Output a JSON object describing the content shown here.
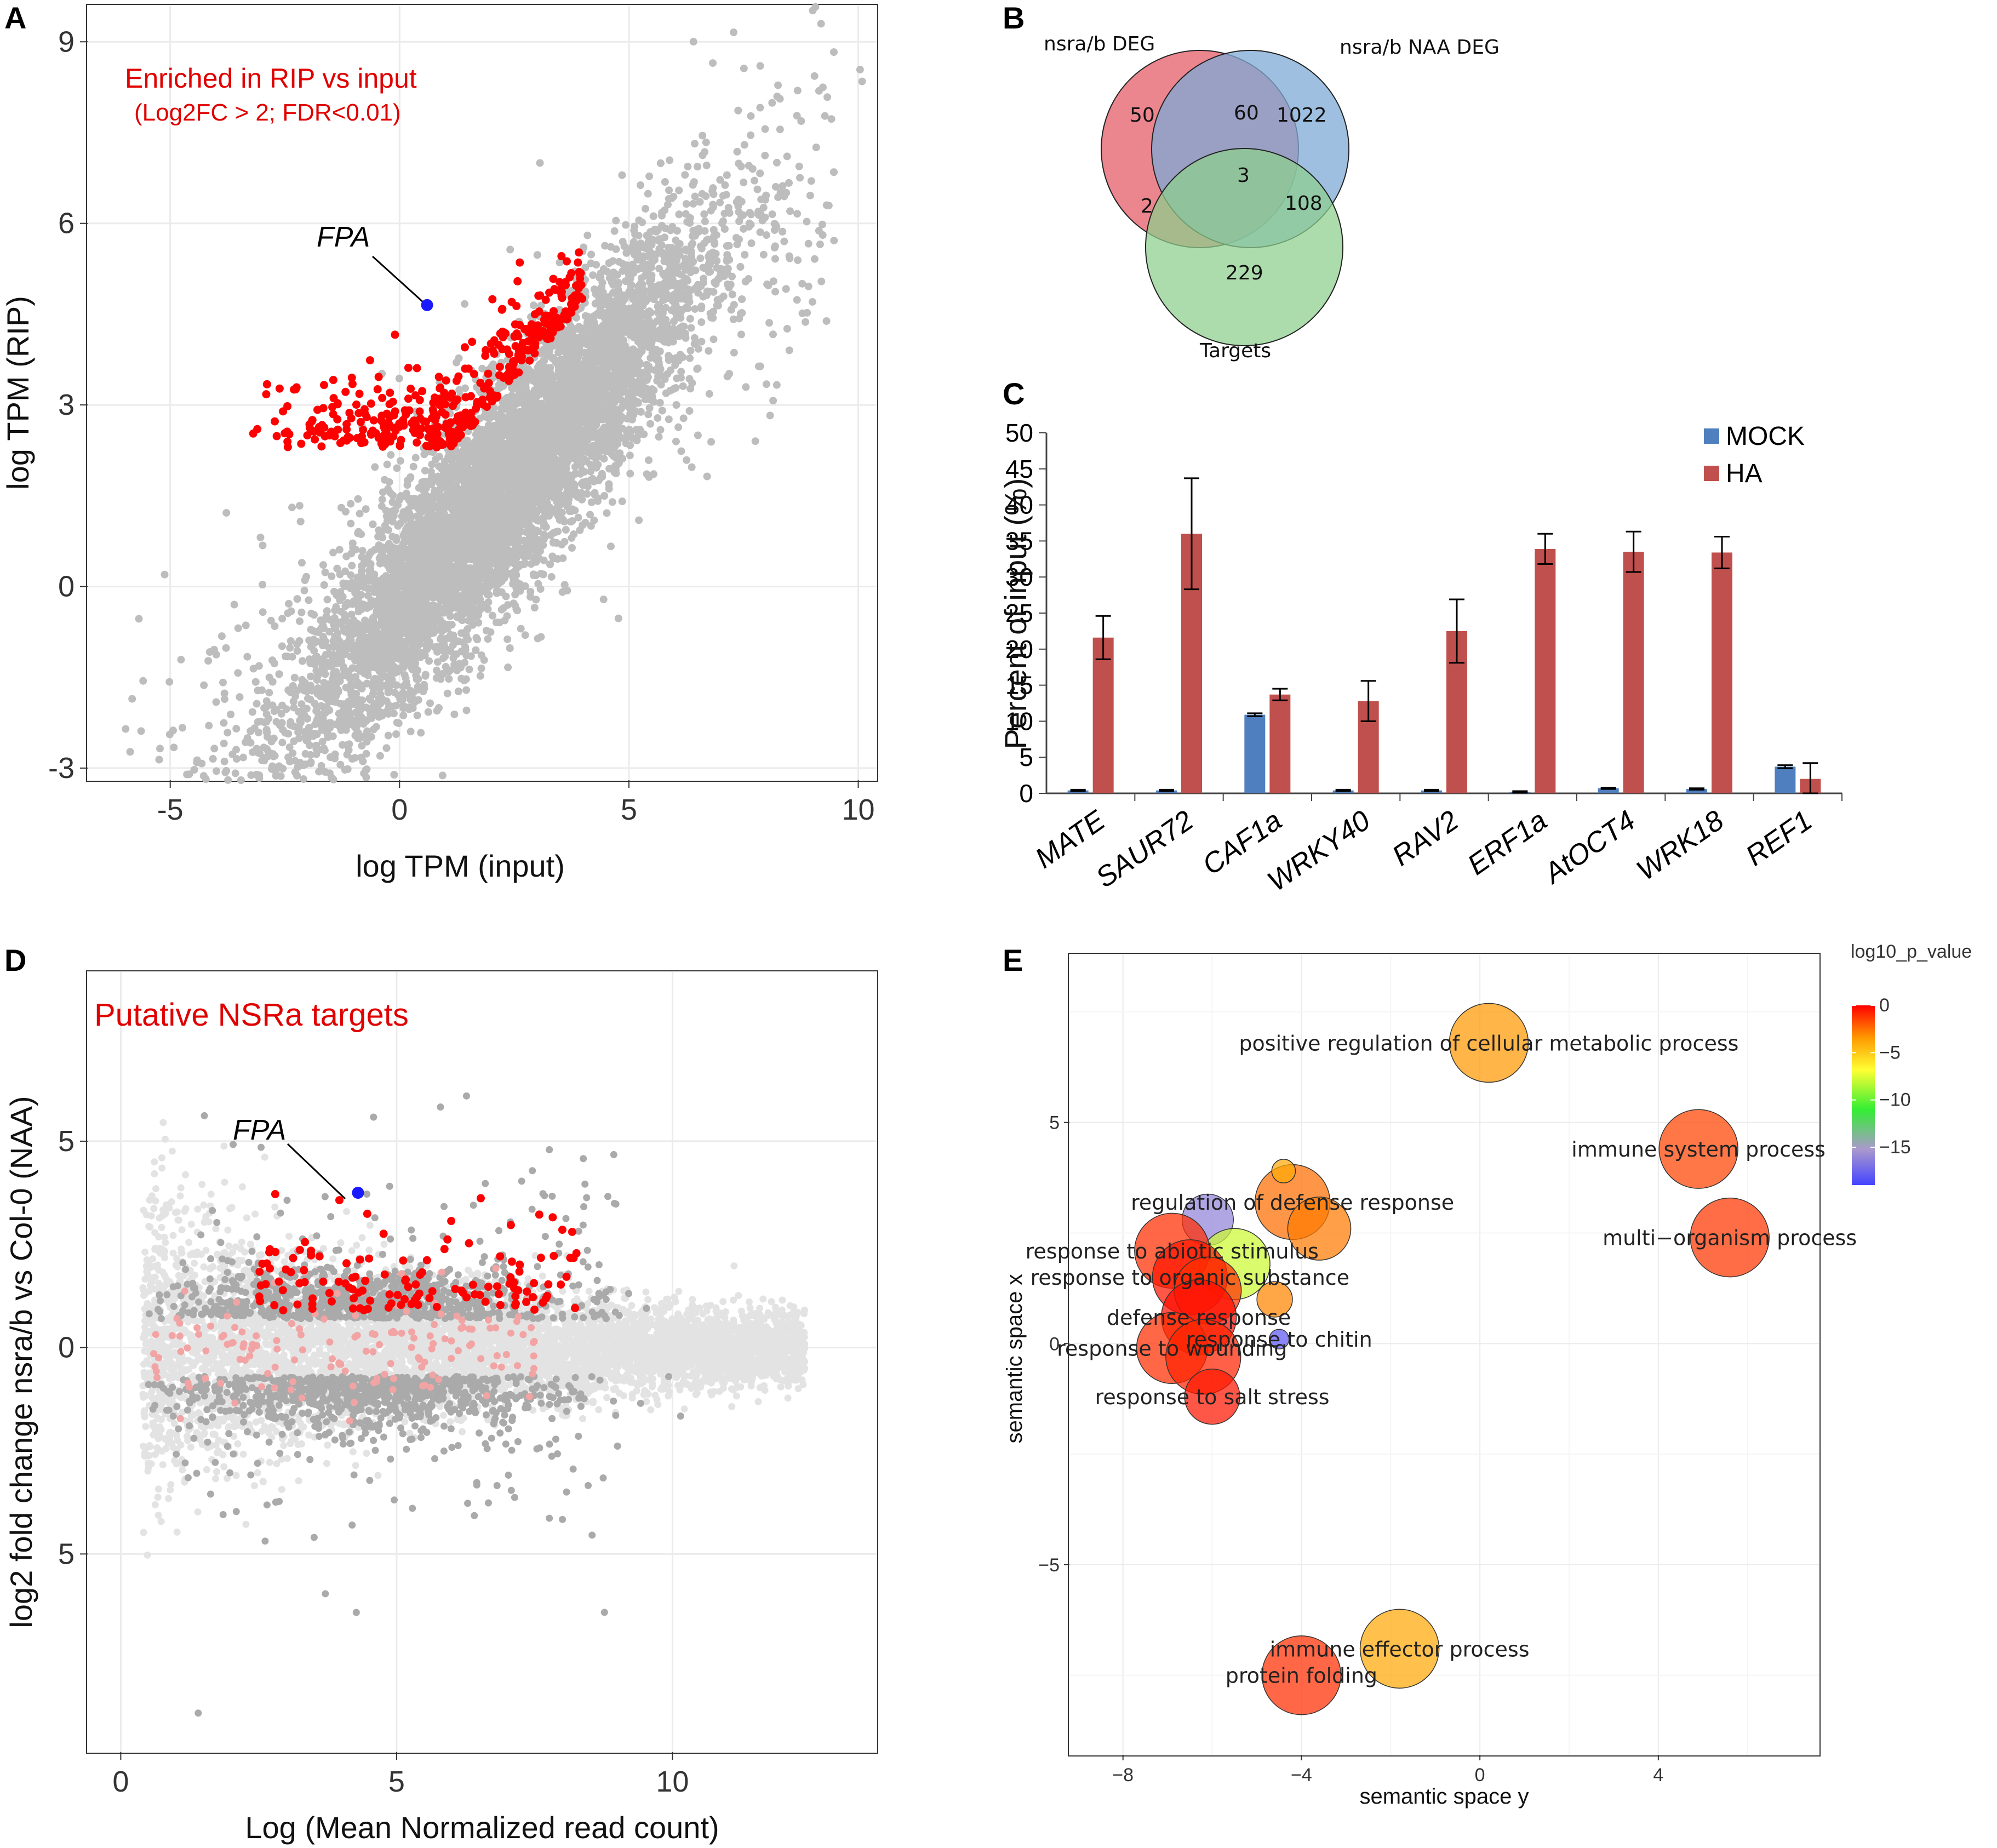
{
  "panels": {
    "A": {
      "letter": "A",
      "title": "Enriched in RIP vs input",
      "subtitle": "(Log2FC > 2; FDR<0.01)",
      "highlight_label": "FPA",
      "xlabel": "log TPM (input)",
      "ylabel": "log TPM (RIP)"
    },
    "B": {
      "letter": "B",
      "sets": [
        "nsra/b DEG",
        "nsra/b NAA DEG",
        "Targets"
      ],
      "colors": [
        "#e8707a",
        "#7faad6",
        "#8ccf8c"
      ]
    },
    "C": {
      "letter": "C"
    },
    "D": {
      "letter": "D",
      "title": "Putative NSRa targets",
      "highlight_label": "FPA",
      "xlabel": "Log (Mean Normalized read count)",
      "ylabel": "log2 fold change nsra/b vs Col-0 (NAA)"
    },
    "E": {
      "letter": "E",
      "xlabel": "semantic space y",
      "ylabel": "semantic space x",
      "legend_title": "log10_p_value"
    }
  },
  "chart_data": [
    {
      "id": "A",
      "type": "scatter",
      "title": "Enriched in RIP vs input",
      "subtitle": "(Log2FC > 2; FDR<0.01)",
      "xlabel": "log TPM (input)",
      "ylabel": "log TPM (RIP)",
      "xlim": [
        -6.8,
        10.4
      ],
      "ylim": [
        -3.2,
        9.6
      ],
      "xticks": [
        "-5",
        "0",
        "5",
        "10"
      ],
      "xtick_values": [
        -5,
        0,
        5,
        10
      ],
      "yticks": [
        "-3",
        "0",
        "3",
        "6",
        "9"
      ],
      "ytick_values": [
        -3,
        0,
        3,
        6,
        9
      ],
      "grid": true,
      "series": [
        {
          "name": "all genes",
          "color": "#bdbdbd",
          "description": "dense cloud along diagonal, roughly y ≈ x - 0.5"
        },
        {
          "name": "enriched",
          "color": "#ff0000",
          "description": "points with RIP > input, x between -4 and 4, y between 2.2 and 5.5"
        }
      ],
      "highlight": {
        "label": "FPA",
        "x": 0.6,
        "y": 4.65,
        "color": "#1a1aff"
      }
    },
    {
      "id": "B",
      "type": "venn",
      "sets": [
        "nsra/b DEG",
        "nsra/b NAA DEG",
        "Targets"
      ],
      "regions": {
        "only_DEG": "50",
        "DEG_NAA": "60",
        "only_NAA": "1022",
        "all_three": "3",
        "DEG_Targets": "2",
        "NAA_Targets": "108",
        "only_Targets": "229"
      }
    },
    {
      "id": "C",
      "type": "bar",
      "ylabel": "Percent of input (%)",
      "ylim": [
        0,
        50
      ],
      "yticks": [
        "0",
        "5",
        "10",
        "15",
        "20",
        "25",
        "30",
        "35",
        "40",
        "45",
        "50"
      ],
      "ytick_values": [
        0,
        5,
        10,
        15,
        20,
        25,
        30,
        35,
        40,
        45,
        50
      ],
      "categories": [
        "MATE",
        "SAUR72",
        "CAF1a",
        "WRKY40",
        "RAV2",
        "ERF1a",
        "AtOCT4",
        "WRK18",
        "REF1"
      ],
      "series": [
        {
          "name": "MOCK",
          "color": "#4f7fbf",
          "values": [
            0.4,
            0.4,
            10.9,
            0.4,
            0.4,
            0.2,
            0.7,
            0.6,
            3.7
          ],
          "errors": [
            0.1,
            0.1,
            0.2,
            0.1,
            0.1,
            0.1,
            0.1,
            0.1,
            0.2
          ]
        },
        {
          "name": "HA",
          "color": "#c0504d",
          "values": [
            21.6,
            36.0,
            13.7,
            12.8,
            22.5,
            33.9,
            33.5,
            33.4,
            2.0
          ],
          "errors": [
            3.0,
            7.7,
            0.8,
            2.8,
            4.4,
            2.1,
            2.8,
            2.2,
            2.2
          ]
        }
      ]
    },
    {
      "id": "D",
      "type": "scatter",
      "title": "Putative NSRa targets",
      "xlabel": "Log (Mean Normalized read count)",
      "ylabel": "log2 fold change nsra/b vs Col-0 (NAA)",
      "xlim": [
        -0.6,
        13.7
      ],
      "ylim": [
        -9.8,
        9.1
      ],
      "xticks": [
        "0",
        "5",
        "10"
      ],
      "xtick_values": [
        0,
        5,
        10
      ],
      "yticks": [
        "5",
        "0",
        "5"
      ],
      "ytick_values": [
        5,
        0,
        -5
      ],
      "grid": true,
      "series": [
        {
          "name": "not significant",
          "color": "#e3e3e3"
        },
        {
          "name": "significant",
          "color": "#aaaaaa"
        },
        {
          "name": "targets",
          "color": "#ff0000"
        }
      ],
      "highlight": {
        "label": "FPA",
        "x": 4.3,
        "y": 3.75,
        "color": "#1a1aff"
      }
    },
    {
      "id": "E",
      "type": "bubble",
      "xlabel": "semantic space y",
      "ylabel": "semantic space x",
      "xlim": [
        -9.2,
        7.6
      ],
      "ylim": [
        -9.3,
        8.8
      ],
      "xticks": [
        "−8",
        "−4",
        "0",
        "4"
      ],
      "xtick_values": [
        -8,
        -4,
        0,
        4
      ],
      "yticks": [
        "5",
        "0",
        "−5"
      ],
      "ytick_values": [
        5,
        0,
        -5
      ],
      "legend": {
        "title": "log10_p_value",
        "ticks": [
          "0",
          "−5",
          "−10",
          "−15"
        ],
        "tick_values": [
          0,
          -5,
          -10,
          -15
        ],
        "range": [
          -19,
          0
        ]
      },
      "points": [
        {
          "label": "positive regulation of cellular metabolic process",
          "x": 0.2,
          "y": 6.8,
          "size": 1.0,
          "p": -3.5
        },
        {
          "label": "immune system process",
          "x": 4.9,
          "y": 4.4,
          "size": 1.0,
          "p": -1.5
        },
        {
          "label": "multi−organism process",
          "x": 5.6,
          "y": 2.4,
          "size": 1.0,
          "p": -1.2
        },
        {
          "label": "regulation of defense response",
          "x": -4.2,
          "y": 3.2,
          "size": 0.95,
          "p": -2.5
        },
        {
          "label": "",
          "x": -3.6,
          "y": 2.6,
          "size": 0.8,
          "p": -2.8
        },
        {
          "label": "",
          "x": -4.4,
          "y": 3.9,
          "size": 0.3,
          "p": -4
        },
        {
          "label": "",
          "x": -6.1,
          "y": 2.8,
          "size": 0.65,
          "p": -16
        },
        {
          "label": "",
          "x": -5.5,
          "y": 1.8,
          "size": 0.9,
          "p": -8
        },
        {
          "label": "response to abiotic stimulus",
          "x": -6.9,
          "y": 2.1,
          "size": 0.95,
          "p": -1
        },
        {
          "label": "response to organic substance",
          "x": -6.5,
          "y": 1.5,
          "size": 0.95,
          "p": -0.5
        },
        {
          "label": "",
          "x": -6.1,
          "y": 1.2,
          "size": 0.85,
          "p": -1
        },
        {
          "label": "",
          "x": -4.6,
          "y": 1.0,
          "size": 0.45,
          "p": -3
        },
        {
          "label": "defense response",
          "x": -6.3,
          "y": 0.6,
          "size": 0.95,
          "p": -0.3
        },
        {
          "label": "response to chitin",
          "x": -4.5,
          "y": 0.1,
          "size": 0.25,
          "p": -18
        },
        {
          "label": "response to wounding",
          "x": -6.9,
          "y": -0.1,
          "size": 0.9,
          "p": -1
        },
        {
          "label": "",
          "x": -6.2,
          "y": -0.3,
          "size": 0.95,
          "p": -0.8
        },
        {
          "label": "response to salt stress",
          "x": -6.0,
          "y": -1.2,
          "size": 0.7,
          "p": -0.5
        },
        {
          "label": "immune effector process",
          "x": -1.8,
          "y": -6.9,
          "size": 1.0,
          "p": -4
        },
        {
          "label": "protein folding",
          "x": -4.0,
          "y": -7.5,
          "size": 1.0,
          "p": -1
        }
      ]
    }
  ]
}
